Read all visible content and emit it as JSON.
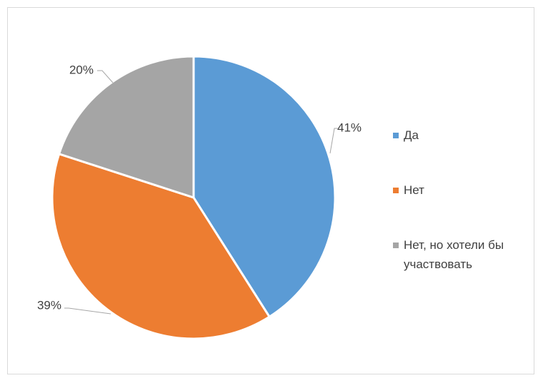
{
  "chart_data": {
    "type": "pie",
    "title": "",
    "categories": [
      "Да",
      "Нет",
      "Нет, но хотели бы участвовать"
    ],
    "values": [
      41,
      39,
      20
    ],
    "labels": [
      "41%",
      "39%",
      "20%"
    ],
    "colors": [
      "#5B9BD5",
      "#ED7D31",
      "#A5A5A5"
    ],
    "legend_position": "right"
  }
}
